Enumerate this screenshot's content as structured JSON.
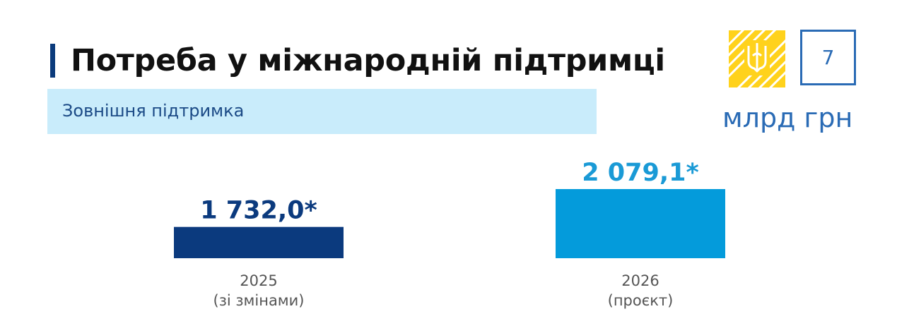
{
  "header": {
    "title": "Потреба у міжнародній підтримці",
    "page_number": "7",
    "unit": "млрд грн"
  },
  "section": {
    "label": "Зовнішня підтримка"
  },
  "colors": {
    "accent": "#0b3b7c",
    "series_2025": "#0b3a7e",
    "series_2026": "#049bdb",
    "emblem_bg": "#ffd21c",
    "page_box": "#2a6bb5",
    "subtitle_bg": "#c9ecfb"
  },
  "icons": {
    "emblem": "trident-emblem-icon"
  },
  "chart_data": {
    "type": "bar",
    "categories": [
      {
        "year": "2025",
        "note": "(зі змінами)"
      },
      {
        "year": "2026",
        "note": "(проєкт)"
      }
    ],
    "values": [
      1732.0,
      2079.1
    ],
    "value_labels": [
      "1 732,0*",
      "2 079,1*"
    ],
    "bar_colors": [
      "#0b3a7e",
      "#049bdb"
    ],
    "label_colors": [
      "#0b3a7e",
      "#1a9ad6"
    ],
    "title": "",
    "xlabel": "",
    "ylabel": "",
    "grid": false
  }
}
